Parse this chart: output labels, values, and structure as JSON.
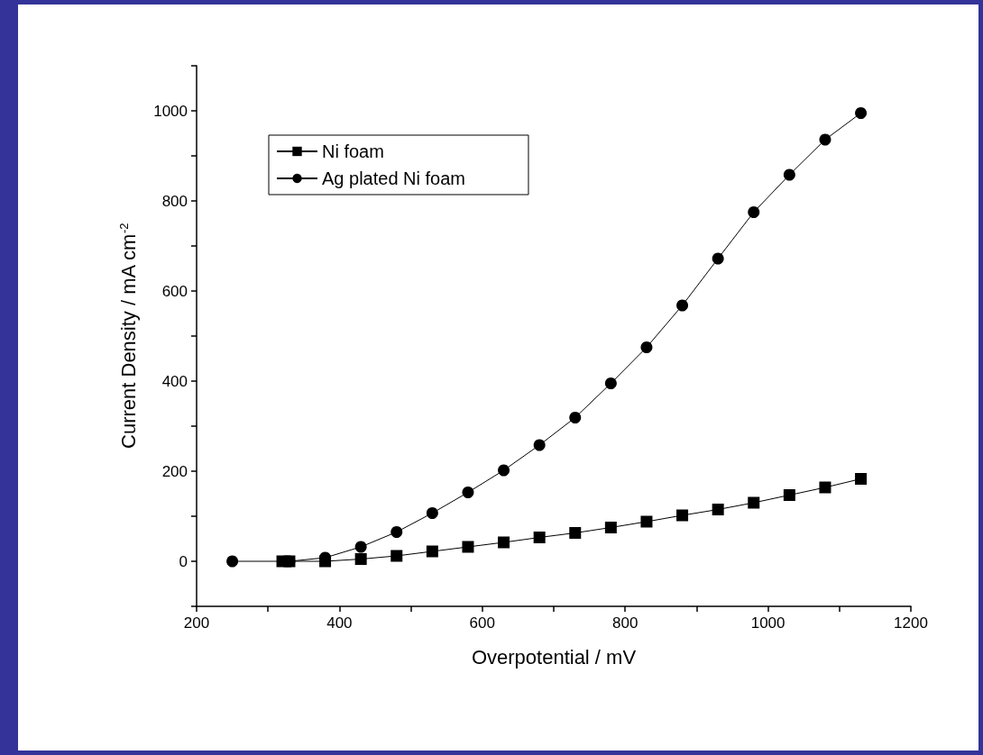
{
  "chart_data": {
    "type": "line",
    "xlabel": "Overpotential / mV",
    "ylabel": "Current Density / mA cm$^{-2}$",
    "xlim": [
      200,
      1200
    ],
    "ylim": [
      -100,
      1100
    ],
    "xticks": [
      200,
      {
        "value": 300,
        "label": null
      },
      400,
      {
        "value": 500,
        "label": null
      },
      600,
      {
        "value": 700,
        "label": null
      },
      800,
      {
        "value": 900,
        "label": null
      },
      1000,
      {
        "value": 1100,
        "label": null
      },
      1200
    ],
    "yticks": [
      {
        "value": -100,
        "label": null
      },
      0,
      {
        "value": 100,
        "label": null
      },
      200,
      {
        "value": 300,
        "label": null
      },
      400,
      {
        "value": 500,
        "label": null
      },
      600,
      {
        "value": 700,
        "label": null
      },
      800,
      {
        "value": 900,
        "label": null
      },
      1000,
      {
        "value": 1100,
        "label": null
      }
    ],
    "grid": false,
    "legend": "top left",
    "line_style": "solid",
    "series": [
      {
        "name": "Ni foam",
        "color": "#000000",
        "marker": "square",
        "x": [
          320,
          330,
          380,
          430,
          480,
          530,
          580,
          630,
          680,
          730,
          780,
          830,
          880,
          930,
          980,
          1030,
          1080,
          1130
        ],
        "values": [
          0,
          0,
          0,
          5,
          12,
          22,
          32,
          42,
          53,
          63,
          75,
          88,
          102,
          115,
          130,
          147,
          164,
          183
        ]
      },
      {
        "name": "Ag plated Ni foam",
        "color": "#000000",
        "marker": "circle",
        "x": [
          250,
          330,
          380,
          430,
          480,
          530,
          580,
          630,
          680,
          730,
          780,
          830,
          880,
          930,
          980,
          1030,
          1080,
          1130
        ],
        "values": [
          0,
          0,
          8,
          32,
          65,
          107,
          153,
          202,
          258,
          319,
          395,
          475,
          568,
          672,
          775,
          858,
          936,
          995
        ]
      }
    ]
  }
}
